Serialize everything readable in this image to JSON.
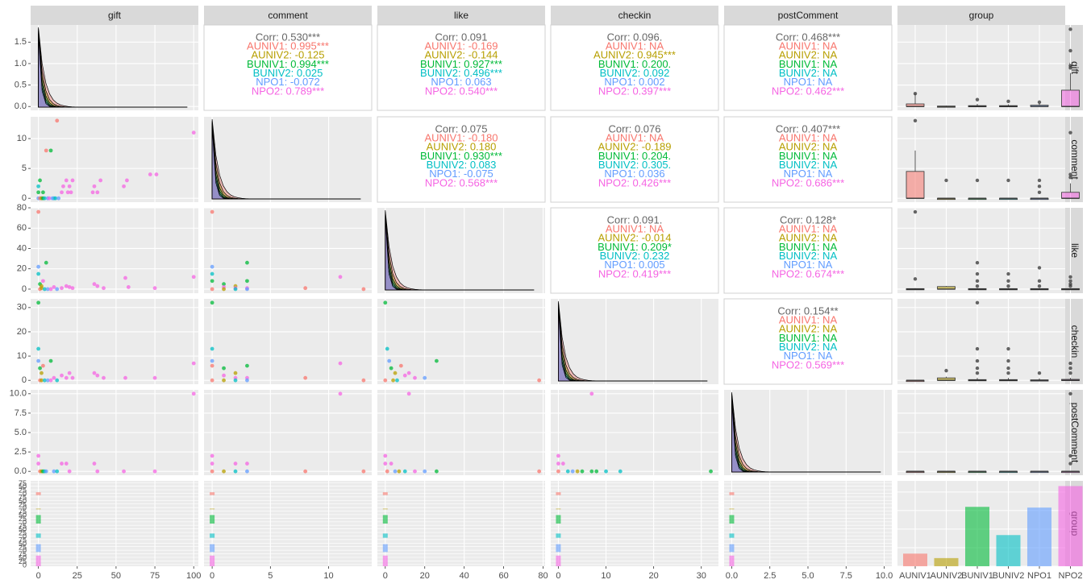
{
  "chart_data": {
    "type": "scatter-matrix",
    "variables": [
      "gift",
      "comment",
      "like",
      "checkin",
      "postComment",
      "group"
    ],
    "groups": [
      "AUNIV1",
      "AUNIV2",
      "BUNIV1",
      "BUNIV2",
      "NPO1",
      "NPO2"
    ],
    "group_colors": [
      "#F8766D",
      "#B79F00",
      "#00BA38",
      "#00BFC4",
      "#619CFF",
      "#F564E3"
    ],
    "overall_color": "#666666",
    "panel_bg": "#EBEBEB",
    "strip_bg": "#D9D9D9",
    "x_ticks": {
      "gift": [
        0,
        25,
        50,
        75,
        100
      ],
      "comment": [
        0,
        5,
        10
      ],
      "like": [
        0,
        20,
        40,
        60,
        80
      ],
      "checkin": [
        0,
        10,
        20,
        30
      ],
      "postComment": [
        "0.0",
        "2.5",
        "5.0",
        "7.5",
        "10.0"
      ],
      "group": [
        "AUNIV1",
        "AUNIV2",
        "BUNIV1",
        "BUNIV2",
        "NPO1",
        "NPO2"
      ]
    },
    "y_ticks": {
      "gift": [
        "0.0",
        "0.5",
        "1.0",
        "1.5"
      ],
      "comment": [
        0,
        5,
        10
      ],
      "like": [
        0,
        20,
        40,
        60,
        80
      ],
      "checkin": [
        0,
        10,
        20,
        30
      ],
      "postComment": [
        "0.0",
        "2.5",
        "5.0",
        "7.5",
        "10.0"
      ],
      "group_tick_labels": [
        "0",
        "25",
        "50",
        "75",
        "0",
        "25",
        "50",
        "75",
        "0",
        "25",
        "50",
        "75",
        "0",
        "25",
        "50",
        "75",
        "0",
        "25",
        "50",
        "75",
        "0",
        "25",
        "50",
        "75"
      ]
    },
    "correlations": [
      {
        "row": 0,
        "col": 1,
        "overall": "Corr: 0.530***",
        "groups": [
          "AUNIV1: 0.995***",
          "AUNIV2: -0.125",
          "BUNIV1: 0.994***",
          "BUNIV2: 0.025",
          "NPO1: -0.072",
          "NPO2: 0.789***"
        ]
      },
      {
        "row": 0,
        "col": 2,
        "overall": "Corr: 0.091",
        "groups": [
          "AUNIV1: -0.169",
          "AUNIV2: -0.144",
          "BUNIV1: 0.927***",
          "BUNIV2: 0.496***",
          "NPO1: 0.063",
          "NPO2: 0.540***"
        ]
      },
      {
        "row": 0,
        "col": 3,
        "overall": "Corr: 0.096.",
        "groups": [
          "AUNIV1:   NA",
          "AUNIV2: 0.945***",
          "BUNIV1: 0.200.",
          "BUNIV2: 0.092",
          "NPO1: 0.002",
          "NPO2: 0.397***"
        ]
      },
      {
        "row": 0,
        "col": 4,
        "overall": "Corr: 0.468***",
        "groups": [
          "AUNIV1:   NA",
          "AUNIV2:   NA",
          "BUNIV1:   NA",
          "BUNIV2:   NA",
          "NPO1:   NA",
          "NPO2: 0.462***"
        ]
      },
      {
        "row": 1,
        "col": 2,
        "overall": "Corr: 0.075",
        "groups": [
          "AUNIV1: -0.180",
          "AUNIV2: 0.180",
          "BUNIV1: 0.930***",
          "BUNIV2: 0.083",
          "NPO1: -0.075",
          "NPO2: 0.568***"
        ]
      },
      {
        "row": 1,
        "col": 3,
        "overall": "Corr: 0.076",
        "groups": [
          "AUNIV1:   NA",
          "AUNIV2: -0.189",
          "BUNIV1: 0.204.",
          "BUNIV2: 0.305.",
          "NPO1: 0.036",
          "NPO2: 0.426***"
        ]
      },
      {
        "row": 1,
        "col": 4,
        "overall": "Corr: 0.407***",
        "groups": [
          "AUNIV1:   NA",
          "AUNIV2:   NA",
          "BUNIV1:   NA",
          "BUNIV2:   NA",
          "NPO1:   NA",
          "NPO2: 0.686***"
        ]
      },
      {
        "row": 2,
        "col": 3,
        "overall": "Corr: 0.091.",
        "groups": [
          "AUNIV1:   NA",
          "AUNIV2: -0.014",
          "BUNIV1: 0.209*",
          "BUNIV2: 0.232",
          "NPO1: 0.005",
          "NPO2: 0.419***"
        ]
      },
      {
        "row": 2,
        "col": 4,
        "overall": "Corr: 0.128*",
        "groups": [
          "AUNIV1:   NA",
          "AUNIV2:   NA",
          "BUNIV1:   NA",
          "BUNIV2:   NA",
          "NPO1:   NA",
          "NPO2: 0.674***"
        ]
      },
      {
        "row": 3,
        "col": 4,
        "overall": "Corr: 0.154**",
        "groups": [
          "AUNIV1:   NA",
          "AUNIV2:   NA",
          "BUNIV1:   NA",
          "BUNIV2:   NA",
          "NPO1:   NA",
          "NPO2: 0.569***"
        ]
      }
    ],
    "group_counts": [
      17,
      11,
      80,
      42,
      79,
      108
    ],
    "scatter": {
      "gift_vs_comment": [
        [
          0,
          0,
          4
        ],
        [
          0,
          1,
          2
        ],
        [
          0,
          2,
          3
        ],
        [
          1,
          3,
          2
        ],
        [
          2,
          0,
          4
        ],
        [
          3,
          1,
          2
        ],
        [
          5,
          8,
          0
        ],
        [
          8,
          8,
          2
        ],
        [
          10,
          0,
          3
        ],
        [
          12,
          13,
          0
        ],
        [
          15,
          1,
          5
        ],
        [
          16,
          2,
          5
        ],
        [
          18,
          3,
          5
        ],
        [
          19,
          1,
          5
        ],
        [
          20,
          2,
          5
        ],
        [
          21,
          1,
          5
        ],
        [
          22,
          3,
          5
        ],
        [
          35,
          1,
          5
        ],
        [
          36,
          2,
          5
        ],
        [
          38,
          1,
          5
        ],
        [
          40,
          3,
          5
        ],
        [
          55,
          2,
          5
        ],
        [
          57,
          3,
          5
        ],
        [
          72,
          4,
          5
        ],
        [
          76,
          4,
          5
        ],
        [
          100,
          11,
          5
        ],
        [
          1,
          0,
          0
        ],
        [
          2,
          0,
          1
        ],
        [
          3,
          0,
          2
        ],
        [
          4,
          0,
          3
        ],
        [
          6,
          0,
          4
        ],
        [
          7,
          0,
          5
        ],
        [
          9,
          0,
          4
        ],
        [
          11,
          0,
          3
        ],
        [
          13,
          0,
          4
        ]
      ],
      "gift_vs_like": [
        [
          0,
          76,
          0
        ],
        [
          0,
          22,
          4
        ],
        [
          0,
          15,
          3
        ],
        [
          1,
          5,
          2
        ],
        [
          2,
          3,
          1
        ],
        [
          5,
          26,
          2
        ],
        [
          3,
          8,
          5
        ],
        [
          10,
          2,
          5
        ],
        [
          15,
          1,
          5
        ],
        [
          18,
          3,
          5
        ],
        [
          20,
          2,
          5
        ],
        [
          22,
          1,
          5
        ],
        [
          36,
          5,
          5
        ],
        [
          38,
          3,
          5
        ],
        [
          42,
          1,
          5
        ],
        [
          56,
          11,
          5
        ],
        [
          58,
          2,
          5
        ],
        [
          75,
          1,
          5
        ],
        [
          100,
          12,
          5
        ],
        [
          1,
          0,
          0
        ],
        [
          2,
          1,
          1
        ],
        [
          4,
          0,
          3
        ],
        [
          6,
          0,
          4
        ],
        [
          8,
          0,
          5
        ],
        [
          12,
          0,
          4
        ]
      ],
      "gift_vs_checkin": [
        [
          0,
          32,
          2
        ],
        [
          0,
          13,
          3
        ],
        [
          0,
          8,
          4
        ],
        [
          1,
          5,
          2
        ],
        [
          2,
          3,
          1
        ],
        [
          3,
          6,
          0
        ],
        [
          8,
          8,
          2
        ],
        [
          10,
          1,
          5
        ],
        [
          15,
          2,
          5
        ],
        [
          18,
          1,
          5
        ],
        [
          20,
          3,
          5
        ],
        [
          22,
          1,
          5
        ],
        [
          36,
          3,
          5
        ],
        [
          38,
          2,
          5
        ],
        [
          42,
          1,
          5
        ],
        [
          56,
          1,
          5
        ],
        [
          75,
          1,
          5
        ],
        [
          100,
          7,
          5
        ],
        [
          1,
          0,
          0
        ],
        [
          2,
          0,
          1
        ],
        [
          4,
          0,
          3
        ],
        [
          6,
          0,
          4
        ],
        [
          8,
          0,
          5
        ],
        [
          12,
          0,
          3
        ]
      ],
      "gift_vs_postComment": [
        [
          0,
          2,
          5
        ],
        [
          0,
          1,
          5
        ],
        [
          1,
          0,
          0
        ],
        [
          2,
          0,
          1
        ],
        [
          3,
          0,
          2
        ],
        [
          4,
          0,
          3
        ],
        [
          5,
          0,
          4
        ],
        [
          15,
          1,
          5
        ],
        [
          18,
          1,
          5
        ],
        [
          20,
          0,
          5
        ],
        [
          36,
          1,
          5
        ],
        [
          38,
          0,
          5
        ],
        [
          55,
          0,
          5
        ],
        [
          75,
          0,
          5
        ],
        [
          100,
          10,
          5
        ],
        [
          10,
          0,
          4
        ],
        [
          12,
          0,
          3
        ]
      ],
      "comment_vs_like": [
        [
          0,
          76,
          0
        ],
        [
          0,
          22,
          4
        ],
        [
          0,
          15,
          3
        ],
        [
          0,
          8,
          2
        ],
        [
          1,
          5,
          2
        ],
        [
          2,
          3,
          1
        ],
        [
          3,
          26,
          2
        ],
        [
          3,
          8,
          2
        ],
        [
          1,
          2,
          5
        ],
        [
          2,
          1,
          5
        ],
        [
          3,
          1,
          5
        ],
        [
          8,
          1,
          0
        ],
        [
          11,
          12,
          5
        ],
        [
          13,
          0,
          0
        ],
        [
          0,
          0,
          0
        ],
        [
          1,
          0,
          1
        ],
        [
          2,
          0,
          3
        ],
        [
          3,
          0,
          4
        ]
      ],
      "comment_vs_checkin": [
        [
          0,
          32,
          2
        ],
        [
          0,
          13,
          3
        ],
        [
          0,
          8,
          4
        ],
        [
          1,
          5,
          2
        ],
        [
          2,
          3,
          1
        ],
        [
          0,
          6,
          0
        ],
        [
          3,
          6,
          2
        ],
        [
          1,
          2,
          5
        ],
        [
          2,
          1,
          5
        ],
        [
          3,
          1,
          5
        ],
        [
          8,
          1,
          0
        ],
        [
          11,
          7,
          5
        ],
        [
          13,
          0,
          0
        ],
        [
          0,
          0,
          0
        ],
        [
          1,
          0,
          1
        ],
        [
          2,
          0,
          3
        ],
        [
          3,
          0,
          4
        ]
      ],
      "comment_vs_postComment": [
        [
          0,
          2,
          5
        ],
        [
          0,
          1,
          5
        ],
        [
          0,
          0,
          0
        ],
        [
          1,
          0,
          1
        ],
        [
          2,
          1,
          5
        ],
        [
          3,
          1,
          5
        ],
        [
          3,
          0,
          4
        ],
        [
          8,
          0,
          0
        ],
        [
          11,
          10,
          5
        ],
        [
          13,
          0,
          0
        ],
        [
          2,
          0,
          3
        ]
      ],
      "like_vs_checkin": [
        [
          0,
          32,
          2
        ],
        [
          1,
          13,
          3
        ],
        [
          2,
          8,
          4
        ],
        [
          3,
          5,
          2
        ],
        [
          5,
          3,
          1
        ],
        [
          8,
          6,
          0
        ],
        [
          10,
          2,
          5
        ],
        [
          12,
          3,
          5
        ],
        [
          15,
          1,
          5
        ],
        [
          20,
          1,
          4
        ],
        [
          26,
          8,
          2
        ],
        [
          78,
          0,
          0
        ],
        [
          0,
          0,
          0
        ],
        [
          4,
          0,
          1
        ],
        [
          6,
          0,
          3
        ]
      ],
      "like_vs_postComment": [
        [
          0,
          2,
          5
        ],
        [
          0,
          1,
          5
        ],
        [
          1,
          0,
          0
        ],
        [
          3,
          1,
          5
        ],
        [
          5,
          0,
          4
        ],
        [
          10,
          0,
          3
        ],
        [
          12,
          10,
          5
        ],
        [
          15,
          0,
          5
        ],
        [
          20,
          0,
          4
        ],
        [
          26,
          0,
          2
        ],
        [
          78,
          0,
          0
        ],
        [
          7,
          0,
          1
        ]
      ],
      "checkin_vs_postComment": [
        [
          0,
          2,
          5
        ],
        [
          0,
          1,
          5
        ],
        [
          1,
          1,
          5
        ],
        [
          2,
          0,
          3
        ],
        [
          3,
          0,
          4
        ],
        [
          5,
          0,
          2
        ],
        [
          7,
          0,
          2
        ],
        [
          8,
          0,
          2
        ],
        [
          7,
          10,
          5
        ],
        [
          10,
          0,
          3
        ],
        [
          13,
          0,
          3
        ],
        [
          32,
          0,
          2
        ],
        [
          0,
          0,
          0
        ],
        [
          4,
          0,
          1
        ]
      ]
    }
  }
}
